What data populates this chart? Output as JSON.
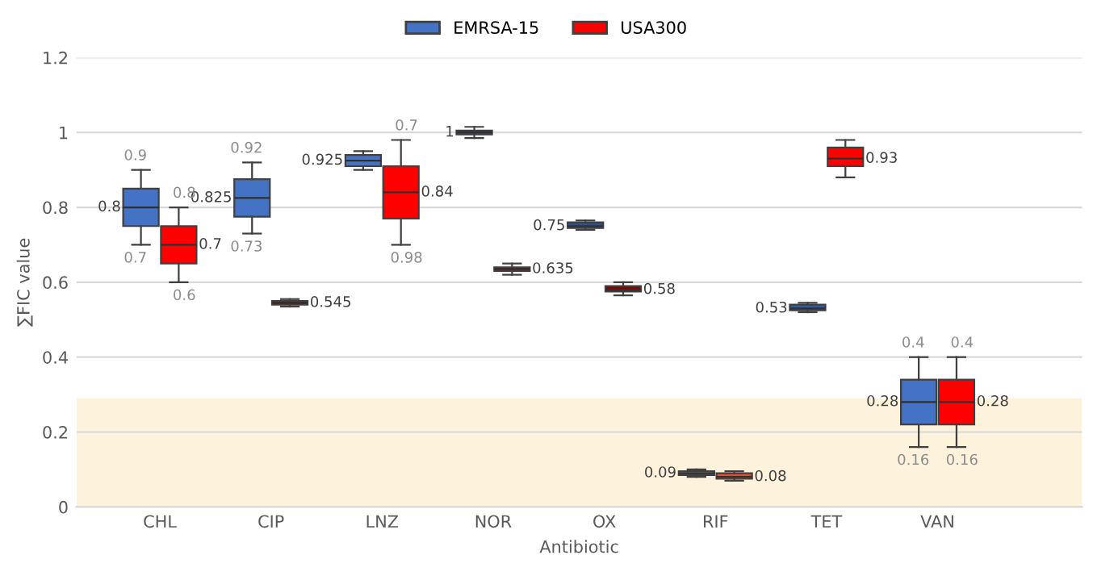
{
  "chart_data": {
    "type": "box",
    "xlabel": "Antibiotic",
    "ylabel": "∑FIC value",
    "categories": [
      "CHL",
      "CIP",
      "LNZ",
      "NOR",
      "OX",
      "RIF",
      "TET",
      "VAN"
    ],
    "ylim": [
      0,
      1.2
    ],
    "yticks": [
      0,
      0.2,
      0.4,
      0.6,
      0.8,
      1,
      1.2
    ],
    "grid": "y",
    "legend": "top",
    "bands": [
      {
        "axis": "y",
        "from": 0,
        "to": 0.29,
        "color": "#fdf3dc"
      }
    ],
    "series": [
      {
        "name": "EMRSA-15",
        "color": "#4472c4",
        "colors": [
          "#4472c4",
          "#4472c4",
          "#4472c4",
          "#2f4f8f",
          "#2f4f8f",
          "#7f7f7f",
          "#2f5aa8",
          "#4472c4"
        ],
        "boxes": [
          {
            "low": 0.7,
            "q1": 0.75,
            "median": 0.8,
            "q3": 0.85,
            "high": 0.9
          },
          {
            "low": 0.73,
            "q1": 0.775,
            "median": 0.825,
            "q3": 0.875,
            "high": 0.92
          },
          {
            "low": 0.9,
            "q1": 0.91,
            "median": 0.925,
            "q3": 0.94,
            "high": 0.95
          },
          {
            "low": 0.985,
            "q1": 0.995,
            "median": 1,
            "q3": 1.005,
            "high": 1.015
          },
          {
            "low": 0.74,
            "q1": 0.745,
            "median": 0.75,
            "q3": 0.76,
            "high": 0.765
          },
          {
            "low": 0.08,
            "q1": 0.085,
            "median": 0.09,
            "q3": 0.095,
            "high": 0.1
          },
          {
            "low": 0.52,
            "q1": 0.525,
            "median": 0.53,
            "q3": 0.54,
            "high": 0.545
          },
          {
            "low": 0.16,
            "q1": 0.22,
            "median": 0.28,
            "q3": 0.34,
            "high": 0.4
          }
        ],
        "value_labels": [
          [
            "0.9",
            "0.8",
            "0.7"
          ],
          [
            "0.92",
            "0.825",
            "0.73"
          ],
          [
            null,
            "0.925",
            null
          ],
          [
            null,
            "1",
            null
          ],
          [
            null,
            "0.75",
            null
          ],
          [
            null,
            "0.09",
            null
          ],
          [
            null,
            "0.53",
            null
          ],
          [
            "0.4",
            "0.28",
            "0.16"
          ]
        ]
      },
      {
        "name": "USA300",
        "color": "#ff0000",
        "colors": [
          "#ff0000",
          "#8b0000",
          "#ff0000",
          "#8b0000",
          "#8b0000",
          "#e0502f",
          "#ff0000",
          "#ff0000"
        ],
        "boxes": [
          {
            "low": 0.6,
            "q1": 0.65,
            "median": 0.7,
            "q3": 0.75,
            "high": 0.8
          },
          {
            "low": 0.535,
            "q1": 0.54,
            "median": 0.545,
            "q3": 0.55,
            "high": 0.555
          },
          {
            "low": 0.7,
            "q1": 0.77,
            "median": 0.84,
            "q3": 0.91,
            "high": 0.98
          },
          {
            "low": 0.62,
            "q1": 0.63,
            "median": 0.635,
            "q3": 0.64,
            "high": 0.65
          },
          {
            "low": 0.565,
            "q1": 0.575,
            "median": 0.58,
            "q3": 0.59,
            "high": 0.6
          },
          {
            "low": 0.07,
            "q1": 0.075,
            "median": 0.08,
            "q3": 0.09,
            "high": 0.095
          },
          {
            "low": 0.88,
            "q1": 0.91,
            "median": 0.93,
            "q3": 0.96,
            "high": 0.98
          },
          {
            "low": 0.16,
            "q1": 0.22,
            "median": 0.28,
            "q3": 0.34,
            "high": 0.4
          }
        ],
        "value_labels": [
          [
            "0.8",
            "0.7",
            "0.6"
          ],
          [
            null,
            "0.545",
            null
          ],
          [
            "0.7",
            "0.84",
            "0.98"
          ],
          [
            null,
            "0.635",
            null
          ],
          [
            null,
            "0.58",
            null
          ],
          [
            null,
            "0.08",
            null
          ],
          [
            null,
            "0.93",
            null
          ],
          [
            "0.4",
            "0.28",
            "0.16"
          ]
        ]
      }
    ]
  }
}
